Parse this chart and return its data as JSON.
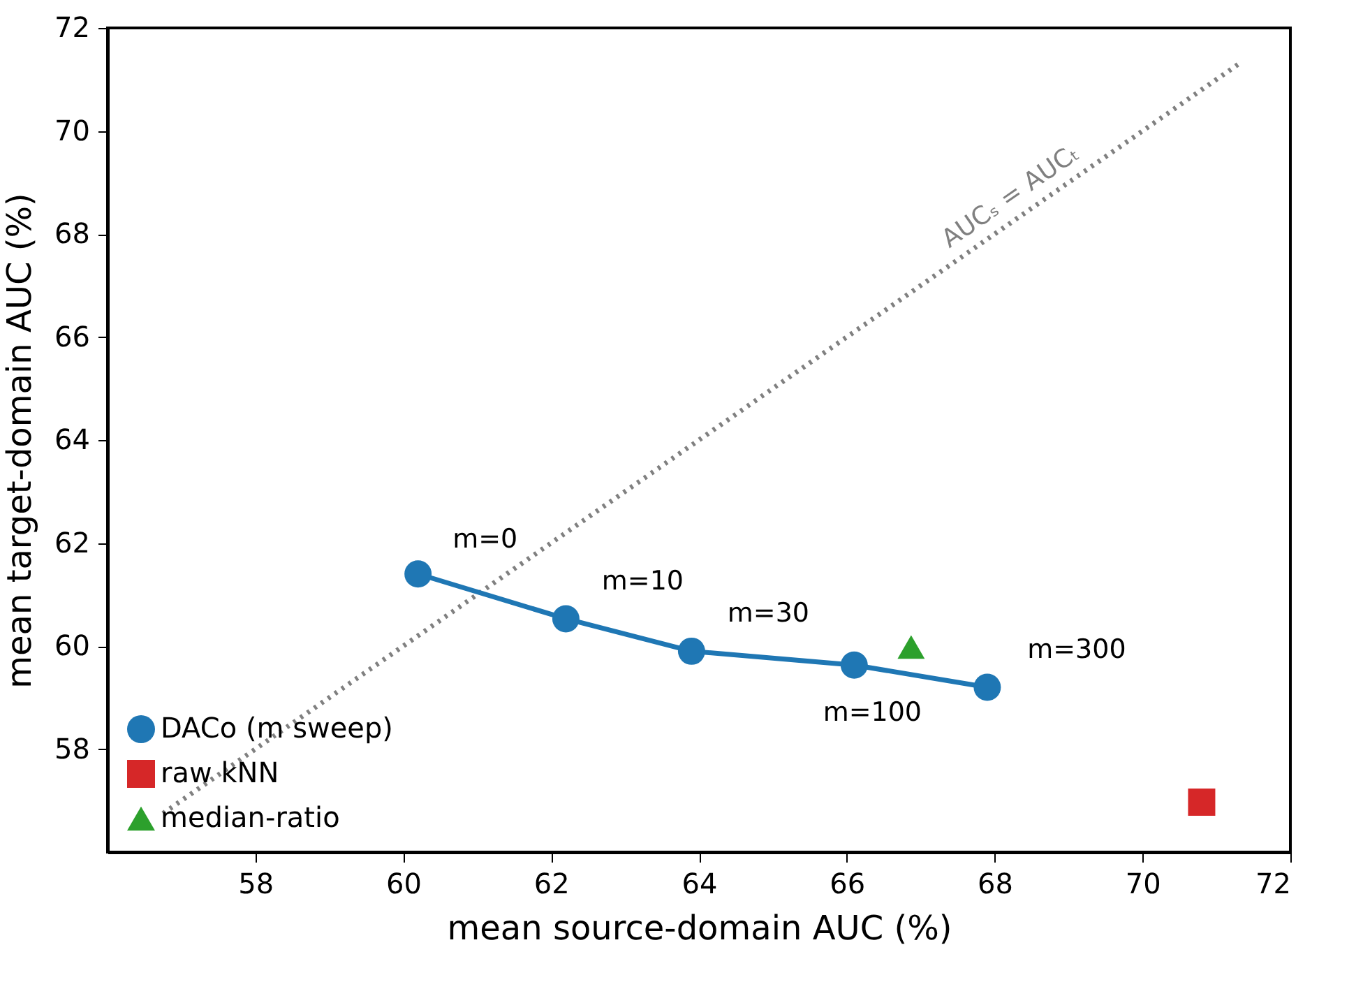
{
  "chart_data": {
    "type": "scatter",
    "xlabel": "mean source-domain AUC (%)",
    "ylabel": "mean target-domain AUC (%)",
    "xlim": [
      56,
      72
    ],
    "xticks": [
      58,
      60,
      62,
      64,
      66,
      68,
      70,
      72
    ],
    "ylim": [
      56,
      72
    ],
    "yticks": [
      58,
      60,
      62,
      64,
      66,
      68,
      70,
      72
    ],
    "grid": false,
    "legend": "bottom left",
    "series": [
      {
        "type": "line",
        "x": [
          56.75,
          71.35
        ],
        "values": [
          56.75,
          71.35
        ],
        "color": "#808080",
        "line_style": "dotted",
        "marker": "none"
      },
      {
        "type": "line",
        "name": "DACo (m sweep)",
        "x": [
          60.2,
          62.2,
          63.9,
          66.1,
          67.9
        ],
        "values": [
          61.4,
          60.53,
          59.9,
          59.63,
          59.2
        ],
        "color": "#1f77b4",
        "marker": "circle",
        "line_style": "solid"
      },
      {
        "name": "raw kNN",
        "x": [
          70.8
        ],
        "values": [
          56.97
        ],
        "color": "#d62728",
        "marker": "square"
      },
      {
        "name": "median-ratio",
        "x": [
          66.87
        ],
        "values": [
          59.98
        ],
        "color": "#2ca02c",
        "marker": "triangle"
      }
    ],
    "annotations": [
      {
        "text": "m=0",
        "x": 60.2,
        "y": 61.4
      },
      {
        "text": "m=10",
        "x": 62.2,
        "y": 60.53
      },
      {
        "text": "m=30",
        "x": 63.9,
        "y": 59.9
      },
      {
        "text": "m=100",
        "x": 66.1,
        "y": 59.63
      },
      {
        "text": "m=300",
        "x": 67.9,
        "y": 59.2
      },
      {
        "text": "AUCₛ = AUCₜ",
        "x": 68.6,
        "y": 68.6
      }
    ]
  }
}
